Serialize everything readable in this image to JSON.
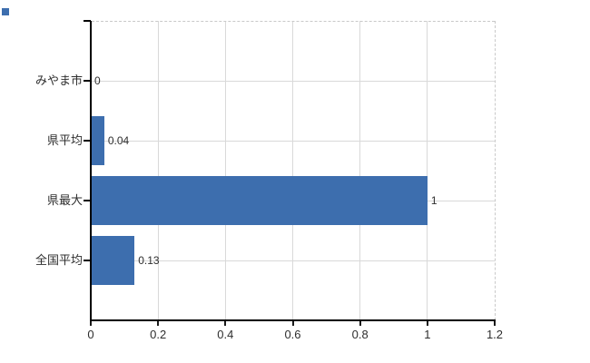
{
  "chart_data": {
    "type": "bar",
    "orientation": "horizontal",
    "title": "",
    "xlabel": "",
    "ylabel": "",
    "categories": [
      "みやま市",
      "県平均",
      "県最大",
      "全国平均"
    ],
    "values": [
      0,
      0.04,
      1,
      0.13
    ],
    "value_labels": [
      "0",
      "0.04",
      "1",
      "0.13"
    ],
    "x_ticks": [
      0,
      0.2,
      0.4,
      0.6,
      0.8,
      1,
      1.2
    ],
    "x_tick_labels": [
      "0",
      "0.2",
      "0.4",
      "0.6",
      "0.8",
      "1",
      "1.2"
    ],
    "xlim": [
      0,
      1.2
    ],
    "grid": true,
    "legend_position": "none",
    "colors": {
      "bar": "#3d6eae",
      "grid": "#d9d9d9",
      "axis": "#000000",
      "text": "#2e2e2e",
      "border_dashed": "#c9c9c9"
    },
    "corner_marker_color": "#3d6eae"
  }
}
